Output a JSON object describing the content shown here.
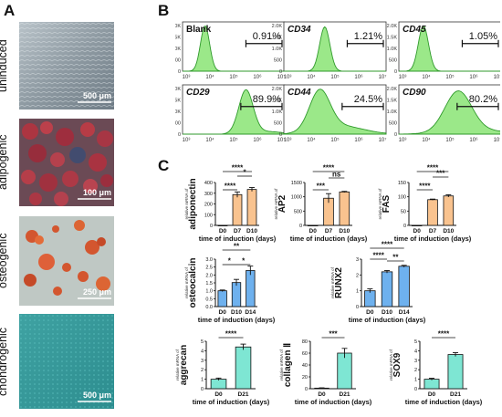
{
  "panel_labels": {
    "a": "A",
    "b": "B",
    "c": "C"
  },
  "panel_a": {
    "rows": [
      {
        "label": "uninduced",
        "scale": "500 μm"
      },
      {
        "label": "adipogenic",
        "scale": "100 μm"
      },
      {
        "label": "osteogenic",
        "scale": "250 μm"
      },
      {
        "label": "chondrogenic",
        "scale": "500 μm"
      }
    ]
  },
  "panel_b": {
    "tick_labels": [
      "10³",
      "10⁴",
      "10⁵",
      "10⁶",
      "10⁷"
    ],
    "y_tick_labels": [
      "0",
      "500",
      "1.0K",
      "1.5K",
      "2.0K"
    ],
    "plots": [
      {
        "name": "Blank",
        "pct": "0.91%"
      },
      {
        "name": "CD34",
        "pct": "1.21%"
      },
      {
        "name": "CD45",
        "pct": "1.05%"
      },
      {
        "name": "CD29",
        "pct": "89.9%"
      },
      {
        "name": "CD44",
        "pct": "24.5%"
      },
      {
        "name": "CD90",
        "pct": "80.2%"
      }
    ]
  },
  "panel_c": {
    "ylabel_prefix": "relative mRNA of",
    "xlabel": "time of induction (days)",
    "colors": {
      "orange": "#f9c38f",
      "blue": "#6eb1ee",
      "teal": "#7ee6d3"
    },
    "charts": [
      {
        "gene": "adiponectin",
        "categories": [
          "D0",
          "D7",
          "D10"
        ],
        "values": [
          0,
          287,
          335
        ],
        "errors": [
          0,
          25,
          18
        ],
        "yticks": [
          "0",
          "100",
          "200",
          "300",
          "400"
        ],
        "ymax": 400,
        "sig": [
          "****",
          "*",
          "****"
        ]
      },
      {
        "gene": "AP2",
        "categories": [
          "D0",
          "D7",
          "D10"
        ],
        "values": [
          0,
          950,
          1170
        ],
        "errors": [
          0,
          160,
          20
        ],
        "yticks": [
          "0",
          "500",
          "1000",
          "1500"
        ],
        "ymax": 1500,
        "sig": [
          "****",
          "ns",
          "***"
        ]
      },
      {
        "gene": "FAS",
        "categories": [
          "D0",
          "D7",
          "D10"
        ],
        "values": [
          0,
          90,
          103
        ],
        "errors": [
          0,
          2,
          4
        ],
        "yticks": [
          "0",
          "50",
          "100",
          "150"
        ],
        "ymax": 150,
        "sig": [
          "****",
          "***",
          "****"
        ]
      },
      {
        "gene": "osteocalcin",
        "categories": [
          "D0",
          "D10",
          "D14"
        ],
        "values": [
          1.0,
          1.52,
          2.28
        ],
        "errors": [
          0.05,
          0.2,
          0.28
        ],
        "yticks": [
          "0.0",
          "0.5",
          "1.0",
          "1.5",
          "2.0",
          "2.5",
          "3.0"
        ],
        "ymax": 3.0,
        "sig": [
          "**",
          "*",
          "*"
        ]
      },
      {
        "gene": "RUNX2",
        "categories": [
          "D0",
          "D10",
          "D14"
        ],
        "values": [
          1.0,
          2.2,
          2.55
        ],
        "errors": [
          0.12,
          0.08,
          0.06
        ],
        "yticks": [
          "0",
          "1",
          "2",
          "3"
        ],
        "ymax": 3.0,
        "sig": [
          "****",
          "****",
          "**"
        ]
      },
      {
        "gene": "aggrecan",
        "categories": [
          "D0",
          "D21"
        ],
        "values": [
          1.0,
          4.4
        ],
        "errors": [
          0.12,
          0.3
        ],
        "yticks": [
          "0",
          "1",
          "2",
          "3",
          "4",
          "5"
        ],
        "ymax": 5,
        "sig": [
          "****"
        ]
      },
      {
        "gene": "collagen Ⅱ",
        "categories": [
          "D0",
          "D21"
        ],
        "values": [
          1,
          60
        ],
        "errors": [
          0.5,
          8
        ],
        "yticks": [
          "0",
          "20",
          "40",
          "60",
          "80"
        ],
        "ymax": 80,
        "sig": [
          "***"
        ]
      },
      {
        "gene": "SOX9",
        "categories": [
          "D0",
          "D21"
        ],
        "values": [
          1.0,
          3.6
        ],
        "errors": [
          0.1,
          0.2
        ],
        "yticks": [
          "0",
          "1",
          "2",
          "3",
          "4",
          "5"
        ],
        "ymax": 5,
        "sig": [
          "****"
        ]
      }
    ]
  },
  "chart_data": [
    {
      "type": "bar",
      "title": "",
      "ylabel": "relative mRNA of adiponectin",
      "xlabel": "time of induction (days)",
      "categories": [
        "D0",
        "D7",
        "D10"
      ],
      "values": [
        0,
        287,
        335
      ],
      "ylim": [
        0,
        400
      ]
    },
    {
      "type": "bar",
      "title": "",
      "ylabel": "relative mRNA of AP2",
      "xlabel": "time of induction (days)",
      "categories": [
        "D0",
        "D7",
        "D10"
      ],
      "values": [
        0,
        950,
        1170
      ],
      "ylim": [
        0,
        1500
      ]
    },
    {
      "type": "bar",
      "title": "",
      "ylabel": "relative mRNA of FAS",
      "xlabel": "time of induction (days)",
      "categories": [
        "D0",
        "D7",
        "D10"
      ],
      "values": [
        0,
        90,
        103
      ],
      "ylim": [
        0,
        150
      ]
    },
    {
      "type": "bar",
      "title": "",
      "ylabel": "relative mRNA of osteocalcin",
      "xlabel": "time of induction (days)",
      "categories": [
        "D0",
        "D10",
        "D14"
      ],
      "values": [
        1.0,
        1.52,
        2.28
      ],
      "ylim": [
        0,
        3
      ]
    },
    {
      "type": "bar",
      "title": "",
      "ylabel": "relative mRNA of RUNX2",
      "xlabel": "time of induction (days)",
      "categories": [
        "D0",
        "D10",
        "D14"
      ],
      "values": [
        1.0,
        2.2,
        2.55
      ],
      "ylim": [
        0,
        3
      ]
    },
    {
      "type": "bar",
      "title": "",
      "ylabel": "relative mRNA of aggrecan",
      "xlabel": "time of induction (days)",
      "categories": [
        "D0",
        "D21"
      ],
      "values": [
        1.0,
        4.4
      ],
      "ylim": [
        0,
        5
      ]
    },
    {
      "type": "bar",
      "title": "",
      "ylabel": "relative mRNA of collagen Ⅱ",
      "xlabel": "time of induction (days)",
      "categories": [
        "D0",
        "D21"
      ],
      "values": [
        1,
        60
      ],
      "ylim": [
        0,
        80
      ]
    },
    {
      "type": "bar",
      "title": "",
      "ylabel": "relative mRNA of SOX9",
      "xlabel": "time of induction (days)",
      "categories": [
        "D0",
        "D21"
      ],
      "values": [
        1.0,
        3.6
      ],
      "ylim": [
        0,
        5
      ]
    }
  ]
}
